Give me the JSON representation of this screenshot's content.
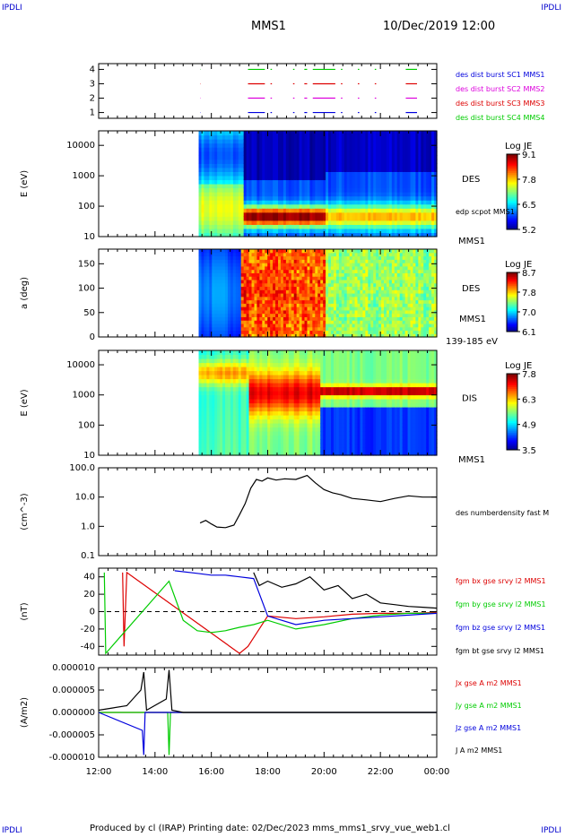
{
  "corners": {
    "tl": "IPDLI",
    "tr": "IPDLI",
    "bl": "IPDLI",
    "br": "IPDLI"
  },
  "header": {
    "spacecraft": "MMS1",
    "datetime": "10/Dec/2019 12:00"
  },
  "footer": {
    "text": "Produced by cl (IRAP)   Printing date: 02/Dec/2023   mms_mms1_srvy_vue_web1.cl"
  },
  "colors": {
    "red": "#dd0000",
    "green": "#00cc00",
    "blue": "#0000dd",
    "magenta": "#dd00dd",
    "black": "#000000"
  },
  "time_axis": {
    "ticks": [
      "12:00",
      "14:00",
      "16:00",
      "18:00",
      "20:00",
      "22:00",
      "00:00"
    ],
    "start_hour": 12,
    "end_hour": 24
  },
  "chart_data": [
    {
      "type": "scatter",
      "panel": "burst-availability",
      "yticks": [
        "1",
        "2",
        "3",
        "4"
      ],
      "ylim": [
        0.6,
        4.4
      ],
      "series": [
        {
          "name": "des dist burst SC1 MMS1",
          "color": "#0000dd",
          "y": 1,
          "segments": [
            [
              15.6,
              15.61
            ],
            [
              17.3,
              17.9
            ],
            [
              18.1,
              18.15
            ],
            [
              18.9,
              18.95
            ],
            [
              19.3,
              19.4
            ],
            [
              19.6,
              20.4
            ],
            [
              20.6,
              20.65
            ],
            [
              21.2,
              21.25
            ],
            [
              21.8,
              21.85
            ],
            [
              22.9,
              23.3
            ]
          ]
        },
        {
          "name": "des dist burst SC2 MMS2",
          "color": "#dd00dd",
          "y": 2,
          "segments": [
            [
              15.6,
              15.61
            ],
            [
              17.3,
              17.9
            ],
            [
              18.1,
              18.15
            ],
            [
              18.9,
              18.95
            ],
            [
              19.3,
              19.4
            ],
            [
              19.6,
              20.4
            ],
            [
              20.6,
              20.65
            ],
            [
              21.2,
              21.25
            ],
            [
              21.8,
              21.85
            ],
            [
              22.9,
              23.3
            ]
          ]
        },
        {
          "name": "des dist burst SC3 MMS3",
          "color": "#dd0000",
          "y": 3,
          "segments": [
            [
              15.6,
              15.61
            ],
            [
              17.3,
              17.9
            ],
            [
              18.1,
              18.15
            ],
            [
              18.9,
              18.95
            ],
            [
              19.3,
              19.4
            ],
            [
              19.6,
              20.4
            ],
            [
              20.6,
              20.65
            ],
            [
              21.2,
              21.25
            ],
            [
              21.8,
              21.85
            ],
            [
              22.9,
              23.3
            ]
          ]
        },
        {
          "name": "des dist burst SC4 MMS4",
          "color": "#00cc00",
          "y": 4,
          "segments": [
            [
              15.6,
              15.61
            ],
            [
              17.3,
              17.9
            ],
            [
              18.1,
              18.15
            ],
            [
              18.9,
              18.95
            ],
            [
              19.3,
              19.4
            ],
            [
              19.6,
              20.4
            ],
            [
              20.6,
              20.65
            ],
            [
              21.2,
              21.25
            ],
            [
              21.8,
              21.85
            ],
            [
              22.9,
              23.3
            ]
          ]
        }
      ]
    },
    {
      "type": "heatmap",
      "panel": "des-energy",
      "ylabel": "E (eV)",
      "yscale": "log",
      "yticks": [
        "10",
        "100",
        "1000",
        "10000"
      ],
      "ylim": [
        10,
        30000
      ],
      "right_label": "DES",
      "right_sublabel": "edp scpot MMS1",
      "bottom_label": "MMS1",
      "colorbar": {
        "title": "Log JE",
        "ticks": [
          "9.1",
          "7.8",
          "6.5",
          "5.2"
        ],
        "range": [
          5.2,
          9.1
        ]
      },
      "data_start_hour": 15.55
    },
    {
      "type": "heatmap",
      "panel": "des-pitch-angle",
      "ylabel": "a (deg)",
      "yticks": [
        "0",
        "50",
        "100",
        "150"
      ],
      "ylim": [
        0,
        180
      ],
      "right_label": "DES",
      "right_sublabel": "MMS1",
      "bottom_label": "139-185 eV",
      "colorbar": {
        "title": "Log JE",
        "ticks": [
          "8.7",
          "7.8",
          "7.0",
          "6.1"
        ],
        "range": [
          6.1,
          8.7
        ]
      },
      "data_start_hour": 15.55
    },
    {
      "type": "heatmap",
      "panel": "dis-energy",
      "ylabel": "E (eV)",
      "yscale": "log",
      "yticks": [
        "10",
        "100",
        "1000",
        "10000"
      ],
      "ylim": [
        10,
        30000
      ],
      "right_label": "DIS",
      "bottom_label": "MMS1",
      "colorbar": {
        "title": "Log JE",
        "ticks": [
          "7.8",
          "6.3",
          "4.9",
          "3.5"
        ],
        "range": [
          3.5,
          7.8
        ]
      },
      "data_start_hour": 15.55
    },
    {
      "type": "line",
      "panel": "density",
      "ylabel": "(cm^-3)",
      "yscale": "log",
      "yticks": [
        "0.1",
        "1.0",
        "10.0",
        "100.0"
      ],
      "ylim": [
        0.1,
        100
      ],
      "series": [
        {
          "name": "des numberdensity fast M",
          "color": "#000000",
          "x": [
            15.6,
            15.8,
            16.0,
            16.2,
            16.5,
            16.8,
            17.0,
            17.2,
            17.4,
            17.6,
            17.8,
            18.0,
            18.3,
            18.6,
            19.0,
            19.4,
            19.7,
            20.0,
            20.3,
            20.6,
            21.0,
            21.5,
            22.0,
            22.5,
            23.0,
            23.5,
            24.0
          ],
          "y": [
            1.3,
            1.6,
            1.2,
            0.95,
            0.9,
            1.1,
            2.5,
            6.0,
            20,
            40,
            35,
            45,
            38,
            42,
            40,
            55,
            30,
            18,
            14,
            12,
            9,
            8,
            7,
            9,
            11,
            10,
            10
          ]
        }
      ]
    },
    {
      "type": "line",
      "panel": "magnetic-field",
      "ylabel": "(nT)",
      "yticks": [
        "-40",
        "-20",
        "0",
        "20",
        "40"
      ],
      "ylim": [
        -50,
        50
      ],
      "series": [
        {
          "name": "fgm bx gse srvy l2 MMS1",
          "color": "#dd0000",
          "x": [
            12.85,
            12.9,
            13.0,
            17.0,
            17.3,
            17.6,
            18.0,
            19.0,
            20.0,
            21.0,
            22.0,
            23.0,
            24.0
          ],
          "y": [
            45,
            -40,
            45,
            -48,
            -40,
            -25,
            -5,
            -8,
            -6,
            -3,
            -2,
            -2,
            -1
          ]
        },
        {
          "name": "fgm by gse srvy l2 MMS1",
          "color": "#00cc00",
          "x": [
            12.2,
            12.25,
            14.5,
            15.0,
            15.5,
            16.0,
            16.5,
            17.0,
            17.5,
            18.0,
            19.0,
            20.0,
            21.0,
            22.0,
            23.0,
            24.0
          ],
          "y": [
            45,
            -48,
            35,
            -10,
            -22,
            -24,
            -22,
            -18,
            -15,
            -10,
            -20,
            -15,
            -8,
            -4,
            -2,
            -2
          ]
        },
        {
          "name": "fgm bz gse srvy l2 MMS1",
          "color": "#0000dd",
          "x": [
            14.7,
            15.5,
            16.0,
            16.5,
            17.0,
            17.5,
            18.0,
            19.0,
            20.0,
            21.0,
            22.0,
            23.0,
            24.0
          ],
          "y": [
            47,
            44,
            42,
            42,
            40,
            38,
            -5,
            -15,
            -10,
            -8,
            -6,
            -4,
            -2
          ]
        },
        {
          "name": "fgm bt gse srvy l2 MMS1",
          "color": "#000000",
          "x": [
            17.5,
            17.7,
            18.0,
            18.5,
            19.0,
            19.5,
            20.0,
            20.5,
            21.0,
            21.5,
            22.0,
            22.5,
            23.0,
            23.5,
            24.0
          ],
          "y": [
            45,
            30,
            35,
            28,
            32,
            40,
            25,
            30,
            15,
            20,
            10,
            8,
            6,
            5,
            4
          ]
        }
      ],
      "zero_line": true
    },
    {
      "type": "line",
      "panel": "current-density",
      "ylabel": "(A/m2)",
      "yticks": [
        "-0.000010",
        "-0.000005",
        "0.000000",
        "0.000005",
        "0.000010"
      ],
      "ylim": [
        -1e-05,
        1e-05
      ],
      "series": [
        {
          "name": "Jx gse A m2 MMS1",
          "color": "#dd0000",
          "x": [
            12.0,
            13.5,
            14.5,
            24.0
          ],
          "y": [
            0.0,
            0.0,
            0.0,
            0.0
          ]
        },
        {
          "name": "Jy gse A m2 MMS1",
          "color": "#00cc00",
          "x": [
            12.0,
            14.45,
            14.5,
            14.55,
            24.0
          ],
          "y": [
            0.0,
            0.0,
            -9.5e-06,
            0.0,
            0.0
          ]
        },
        {
          "name": "Jz gse A m2 MMS1",
          "color": "#0000dd",
          "x": [
            12.0,
            13.55,
            13.6,
            13.65,
            14.5,
            24.0
          ],
          "y": [
            0.0,
            -4e-06,
            -9.5e-06,
            0.0,
            0.0,
            0.0
          ]
        },
        {
          "name": "J A m2 MMS1",
          "color": "#000000",
          "x": [
            12.0,
            12.5,
            13.0,
            13.5,
            13.6,
            13.7,
            14.4,
            14.5,
            14.6,
            15.0,
            24.0
          ],
          "y": [
            5e-07,
            1e-06,
            1.5e-06,
            5e-06,
            9e-06,
            5e-07,
            3e-06,
            9.5e-06,
            5e-07,
            0.0,
            0.0
          ]
        }
      ]
    }
  ]
}
